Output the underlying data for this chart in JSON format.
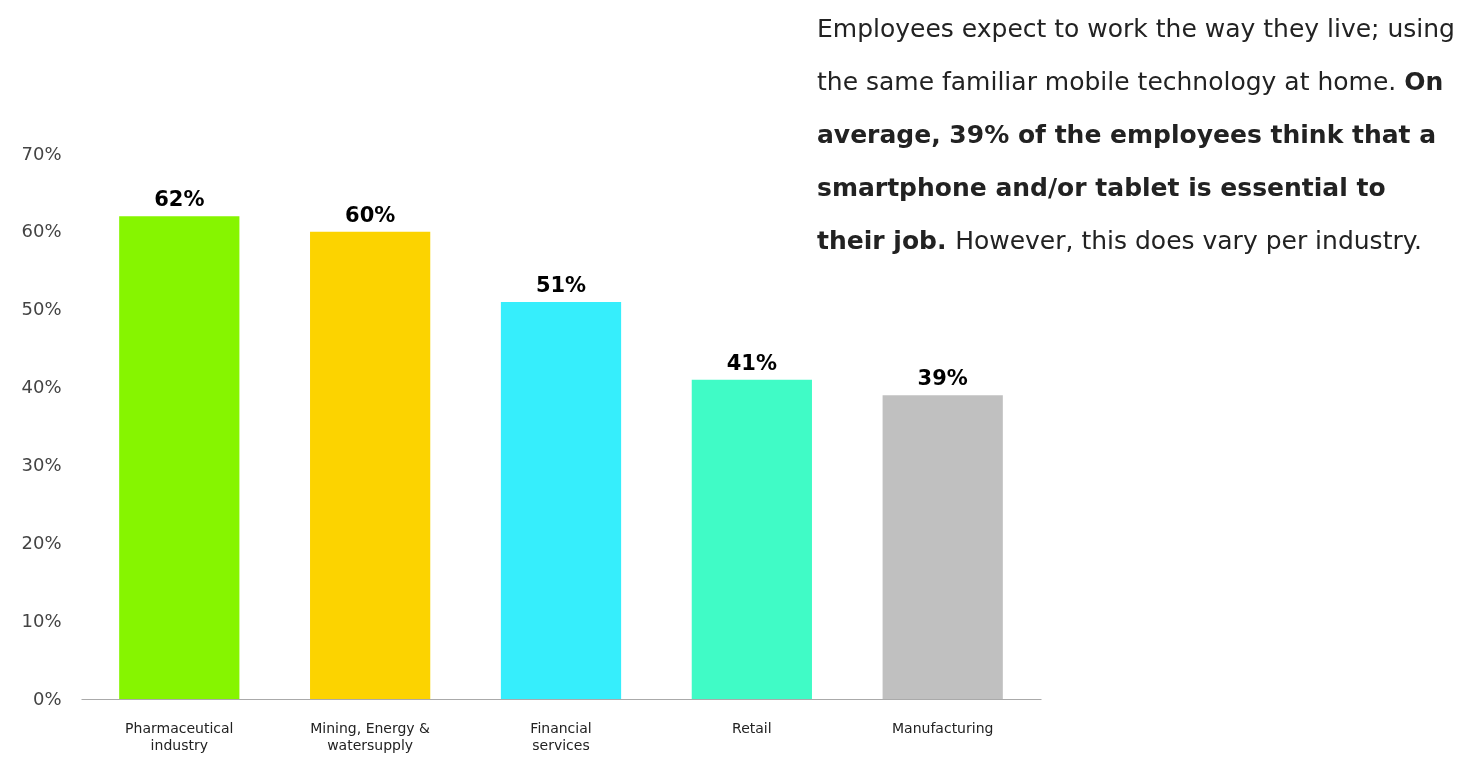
{
  "chart_data": {
    "type": "bar",
    "categories": [
      "Pharmaceutical industry",
      "Mining, Energy & watersupply",
      "Financial services",
      "Retail",
      "Manufacturing"
    ],
    "values": [
      62,
      60,
      51,
      41,
      39
    ],
    "colors": [
      "#86f500",
      "#fcd300",
      "#36eefc",
      "#40fbc6",
      "#c0c0c0"
    ],
    "value_labels": [
      "62%",
      "60%",
      "51%",
      "41%",
      "39%"
    ],
    "ylim": [
      0,
      70
    ],
    "yticks": [
      {
        "value": 0,
        "label": "0%"
      },
      {
        "value": 10,
        "label": "10%"
      },
      {
        "value": 20,
        "label": "20%"
      },
      {
        "value": 30,
        "label": "30%"
      },
      {
        "value": 40,
        "label": "40%"
      },
      {
        "value": 50,
        "label": "50%"
      },
      {
        "value": 60,
        "label": "60%"
      },
      {
        "value": 70,
        "label": "70%"
      }
    ],
    "grid": false,
    "annotations": [
      "Employees expect to work the way they live; using the same familiar mobile technology at home.",
      "On average, 39% of the employees think that a smartphone and/or tablet is essential to their job.",
      "However, this does vary per industry."
    ]
  }
}
